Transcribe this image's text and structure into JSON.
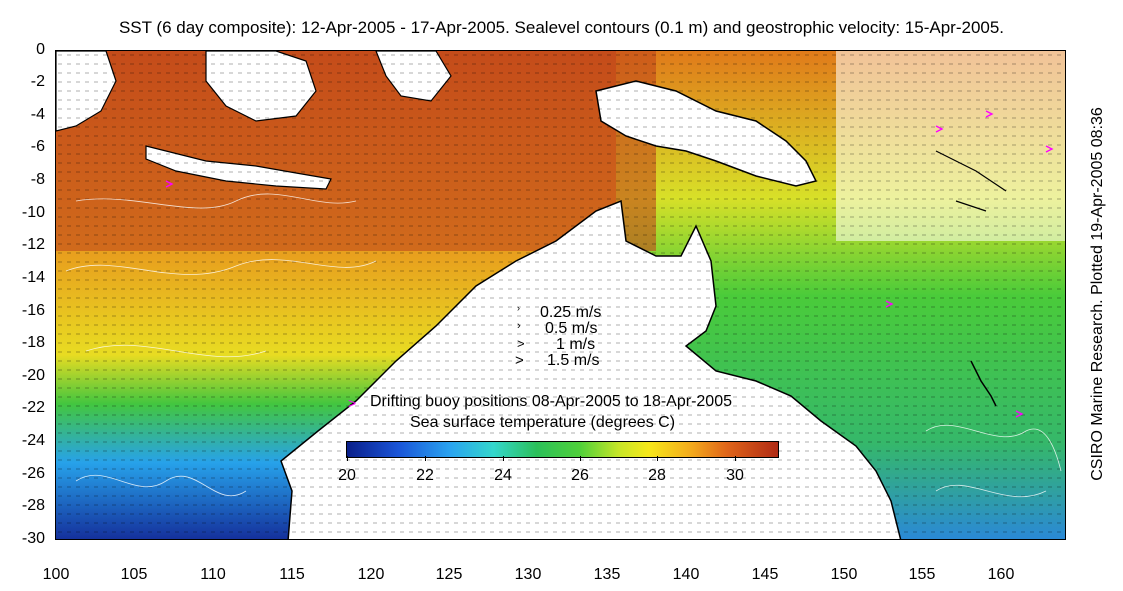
{
  "title": "SST (6 day composite): 12-Apr-2005 - 17-Apr-2005. Sealevel contours (0.1 m) and geostrophic velocity: 15-Apr-2005.",
  "credit": "CSIRO Marine Research. Plotted 19-Apr-2005 08:36",
  "y_ticks": [
    "0",
    "-2",
    "-4",
    "-6",
    "-8",
    "-10",
    "-12",
    "-14",
    "-16",
    "-18",
    "-20",
    "-22",
    "-24",
    "-26",
    "-28",
    "-30"
  ],
  "x_ticks": [
    "100",
    "105",
    "110",
    "115",
    "120",
    "125",
    "130",
    "135",
    "140",
    "145",
    "150",
    "155",
    "160"
  ],
  "velocity_legend": [
    "0.25 m/s",
    "0.5 m/s",
    "1 m/s",
    "1.5 m/s"
  ],
  "buoy_legend": "Drifting buoy positions 08-Apr-2005 to 18-Apr-2005",
  "colorbar_title": "Sea surface temperature (degrees C)",
  "colorbar_ticks": [
    "20",
    "22",
    "24",
    "26",
    "28",
    "30"
  ],
  "colors": {
    "land": "#ffffff",
    "coast": "#000000",
    "buoy": "#ff00ff",
    "sst_warm": "#b5360f",
    "sst_cool": "#1a3fb8"
  }
}
